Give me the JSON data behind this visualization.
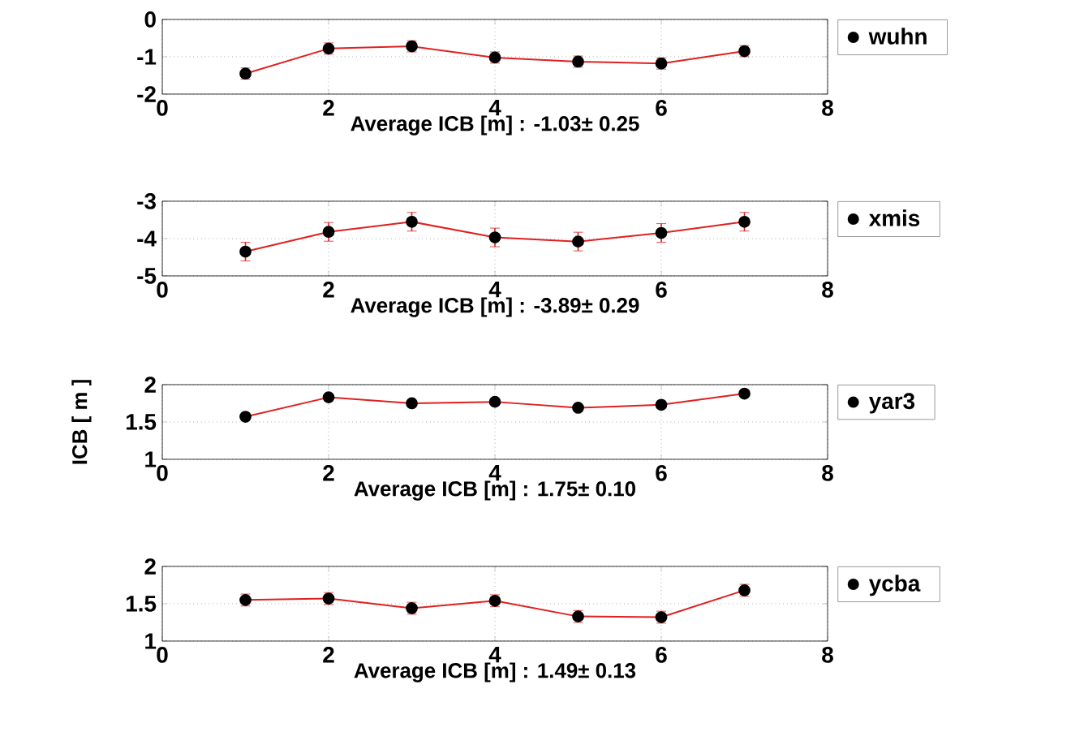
{
  "chart_data": [
    {
      "type": "line",
      "xlabel": "Average ICB [m] : -1.03± 0.25",
      "x": [
        1,
        2,
        3,
        4,
        5,
        6,
        7
      ],
      "xlim": [
        0,
        8
      ],
      "xticks": [
        0,
        2,
        4,
        6,
        8
      ],
      "ylim": [
        -2,
        0
      ],
      "yticks": [
        -2,
        -1,
        0
      ],
      "grid": true,
      "legend": "right",
      "marker": "circle",
      "series": [
        {
          "name": "wuhn",
          "color": "#e02020",
          "values": [
            -1.45,
            -0.78,
            -0.72,
            -1.02,
            -1.13,
            -1.18,
            -0.85
          ],
          "errors": [
            0.15,
            0.15,
            0.15,
            0.15,
            0.15,
            0.15,
            0.15
          ]
        }
      ]
    },
    {
      "type": "line",
      "xlabel": "Average ICB [m] : -3.89± 0.29",
      "x": [
        1,
        2,
        3,
        4,
        5,
        6,
        7
      ],
      "xlim": [
        0,
        8
      ],
      "xticks": [
        0,
        2,
        4,
        6,
        8
      ],
      "ylim": [
        -5,
        -3
      ],
      "yticks": [
        -5,
        -4,
        -3
      ],
      "grid": true,
      "legend": "right",
      "marker": "circle",
      "series": [
        {
          "name": "xmis",
          "color": "#e02020",
          "values": [
            -4.35,
            -3.82,
            -3.55,
            -3.97,
            -4.08,
            -3.85,
            -3.55
          ],
          "errors": [
            0.25,
            0.25,
            0.25,
            0.25,
            0.25,
            0.25,
            0.25
          ]
        }
      ]
    },
    {
      "type": "line",
      "xlabel": "Average ICB [m] : 1.75± 0.10",
      "ylabel": "ICB [ m ]",
      "x": [
        1,
        2,
        3,
        4,
        5,
        6,
        7
      ],
      "xlim": [
        0,
        8
      ],
      "xticks": [
        0,
        2,
        4,
        6,
        8
      ],
      "ylim": [
        1,
        2
      ],
      "yticks": [
        1,
        1.5,
        2
      ],
      "grid": true,
      "legend": "right",
      "marker": "circle",
      "series": [
        {
          "name": "yar3",
          "color": "#e02020",
          "values": [
            1.57,
            1.83,
            1.75,
            1.77,
            1.69,
            1.73,
            1.88
          ]
        }
      ]
    },
    {
      "type": "line",
      "xlabel": "Average ICB [m] : 1.49± 0.13",
      "x": [
        1,
        2,
        3,
        4,
        5,
        6,
        7
      ],
      "xlim": [
        0,
        8
      ],
      "xticks": [
        0,
        2,
        4,
        6,
        8
      ],
      "ylim": [
        1,
        2
      ],
      "yticks": [
        1,
        1.5,
        2
      ],
      "grid": true,
      "legend": "right",
      "marker": "circle",
      "series": [
        {
          "name": "ycba",
          "color": "#e02020",
          "values": [
            1.55,
            1.57,
            1.44,
            1.54,
            1.33,
            1.32,
            1.68
          ],
          "errors": [
            0.08,
            0.08,
            0.08,
            0.08,
            0.08,
            0.08,
            0.08
          ]
        }
      ]
    }
  ]
}
